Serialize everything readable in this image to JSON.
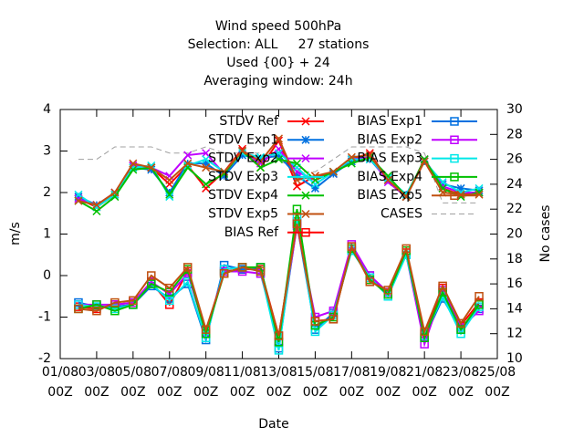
{
  "chart_data": {
    "type": "line",
    "title": "Wind speed 500hPa",
    "subtitles": [
      "Selection: ALL     27 stations",
      "Used {00} + 24",
      "Averaging window: 24h"
    ],
    "x_label": "Date",
    "y_label": "m/s",
    "y2_label": "No cases",
    "x": [
      2,
      3,
      4,
      5,
      6,
      7,
      8,
      9,
      10,
      11,
      12,
      13,
      14,
      15,
      16,
      17,
      18,
      19,
      20,
      21,
      22,
      23,
      24
    ],
    "xlim": [
      1,
      25
    ],
    "xticks": [
      {
        "value": 1,
        "label": "01/08\n00Z"
      },
      {
        "value": 3,
        "label": "03/08\n00Z"
      },
      {
        "value": 5,
        "label": "05/08\n00Z"
      },
      {
        "value": 7,
        "label": "07/08\n00Z"
      },
      {
        "value": 9,
        "label": "09/08\n00Z"
      },
      {
        "value": 11,
        "label": "11/08\n00Z"
      },
      {
        "value": 13,
        "label": "13/08\n00Z"
      },
      {
        "value": 15,
        "label": "15/08\n00Z"
      },
      {
        "value": 17,
        "label": "17/08\n00Z"
      },
      {
        "value": 19,
        "label": "19/08\n00Z"
      },
      {
        "value": 21,
        "label": "21/08\n00Z"
      },
      {
        "value": 23,
        "label": "23/08\n00Z"
      },
      {
        "value": 25,
        "label": "25/08\n00Z"
      }
    ],
    "ylim": [
      -2,
      4
    ],
    "yticks": [
      -2,
      -1,
      0,
      1,
      2,
      3,
      4
    ],
    "y2lim": [
      10,
      30
    ],
    "y2ticks": [
      10,
      12,
      14,
      16,
      18,
      20,
      22,
      24,
      26,
      28,
      30
    ],
    "grid": false,
    "series": [
      {
        "name": "STDV Ref",
        "color": "#ff0000",
        "marker": "x",
        "values": [
          1.85,
          1.65,
          1.95,
          2.65,
          2.6,
          2.2,
          2.65,
          2.1,
          2.5,
          3.05,
          2.6,
          3.25,
          2.15,
          2.4,
          2.45,
          2.8,
          2.95,
          2.3,
          1.9,
          2.8,
          2.1,
          1.95,
          2.0
        ]
      },
      {
        "name": "STDV Exp1",
        "color": "#0070e0",
        "marker": "star",
        "values": [
          1.9,
          1.7,
          1.95,
          2.6,
          2.55,
          2.0,
          2.7,
          2.7,
          2.4,
          2.9,
          2.8,
          2.9,
          2.4,
          2.1,
          2.45,
          2.75,
          2.8,
          2.3,
          1.95,
          2.75,
          2.2,
          2.1,
          2.05
        ]
      },
      {
        "name": "STDV Exp2",
        "color": "#c000ff",
        "marker": "x",
        "values": [
          1.85,
          1.7,
          2.0,
          2.65,
          2.6,
          2.4,
          2.9,
          2.95,
          2.45,
          3.0,
          2.7,
          3.05,
          2.5,
          2.3,
          2.5,
          2.8,
          2.85,
          2.25,
          1.9,
          2.8,
          2.15,
          2.0,
          2.0
        ]
      },
      {
        "name": "STDV Exp3",
        "color": "#00e8e8",
        "marker": "x",
        "values": [
          1.95,
          1.65,
          1.95,
          2.6,
          2.65,
          1.9,
          2.65,
          2.8,
          2.5,
          2.95,
          2.85,
          2.95,
          2.6,
          2.2,
          2.5,
          2.8,
          2.8,
          2.35,
          1.95,
          2.75,
          2.25,
          2.0,
          2.1
        ]
      },
      {
        "name": "STDV Exp4",
        "color": "#00c000",
        "marker": "x",
        "values": [
          1.8,
          1.55,
          1.9,
          2.55,
          2.6,
          1.95,
          2.6,
          2.2,
          2.45,
          3.0,
          2.6,
          2.8,
          2.7,
          2.3,
          2.5,
          2.7,
          2.85,
          2.4,
          1.9,
          2.8,
          2.1,
          1.9,
          2.0
        ]
      },
      {
        "name": "STDV Exp5",
        "color": "#c05010",
        "marker": "x",
        "values": [
          1.8,
          1.7,
          2.0,
          2.7,
          2.6,
          2.3,
          2.7,
          2.6,
          2.5,
          3.0,
          2.75,
          3.3,
          2.3,
          2.4,
          2.5,
          2.85,
          2.9,
          2.3,
          1.9,
          2.75,
          2.0,
          1.95,
          1.95
        ]
      },
      {
        "name": "BIAS Ref",
        "color": "#ff0000",
        "marker": "square",
        "values": [
          -0.75,
          -0.8,
          -0.7,
          -0.65,
          -0.15,
          -0.7,
          0.1,
          -1.4,
          0.1,
          0.15,
          0.15,
          -1.45,
          1.3,
          -1.1,
          -1.05,
          0.7,
          -0.1,
          -0.4,
          0.55,
          -1.4,
          -0.3,
          -1.2,
          -0.65
        ]
      },
      {
        "name": "BIAS Exp1",
        "color": "#0070e0",
        "marker": "square",
        "values": [
          -0.65,
          -0.75,
          -0.75,
          -0.7,
          -0.25,
          -0.55,
          -0.2,
          -1.55,
          0.25,
          0.15,
          0.2,
          -1.75,
          1.25,
          -1.3,
          -0.9,
          0.6,
          0.0,
          -0.45,
          0.5,
          -1.5,
          -0.55,
          -1.3,
          -0.8
        ]
      },
      {
        "name": "BIAS Exp2",
        "color": "#c000ff",
        "marker": "square",
        "values": [
          -0.7,
          -0.7,
          -0.7,
          -0.65,
          -0.15,
          -0.45,
          0.05,
          -1.35,
          0.1,
          0.1,
          0.05,
          -1.6,
          1.2,
          -1.0,
          -0.85,
          0.75,
          0.0,
          -0.4,
          0.5,
          -1.65,
          -0.35,
          -1.25,
          -0.85
        ]
      },
      {
        "name": "BIAS Exp3",
        "color": "#00e8e8",
        "marker": "square",
        "values": [
          -0.7,
          -0.75,
          -0.8,
          -0.7,
          -0.2,
          -0.6,
          -0.15,
          -1.5,
          0.15,
          0.2,
          0.1,
          -1.8,
          1.4,
          -1.35,
          -0.95,
          0.6,
          -0.05,
          -0.5,
          0.5,
          -1.45,
          -0.5,
          -1.4,
          -0.75
        ]
      },
      {
        "name": "BIAS Exp4",
        "color": "#00c000",
        "marker": "square",
        "values": [
          -0.8,
          -0.7,
          -0.85,
          -0.7,
          -0.2,
          -0.4,
          0.15,
          -1.4,
          0.05,
          0.2,
          0.2,
          -1.6,
          1.6,
          -1.2,
          -1.0,
          0.65,
          -0.1,
          -0.45,
          0.6,
          -1.5,
          -0.4,
          -1.3,
          -0.7
        ]
      },
      {
        "name": "BIAS Exp5",
        "color": "#c05010",
        "marker": "square",
        "values": [
          -0.8,
          -0.85,
          -0.65,
          -0.6,
          0.0,
          -0.3,
          0.2,
          -1.3,
          0.05,
          0.2,
          0.1,
          -1.45,
          1.25,
          -1.1,
          -1.05,
          0.7,
          -0.15,
          -0.35,
          0.65,
          -1.35,
          -0.25,
          -1.15,
          -0.5
        ]
      },
      {
        "name": "CASES",
        "color": "#a0a0a0",
        "marker": "none",
        "dashed": true,
        "axis": "y2",
        "values": [
          26,
          26,
          27,
          27,
          27,
          26.5,
          26.5,
          27,
          26.5,
          26.5,
          26.5,
          26,
          25,
          25,
          26,
          27,
          27,
          27,
          27,
          26.5,
          22.5,
          22.5,
          22.5
        ]
      }
    ]
  }
}
